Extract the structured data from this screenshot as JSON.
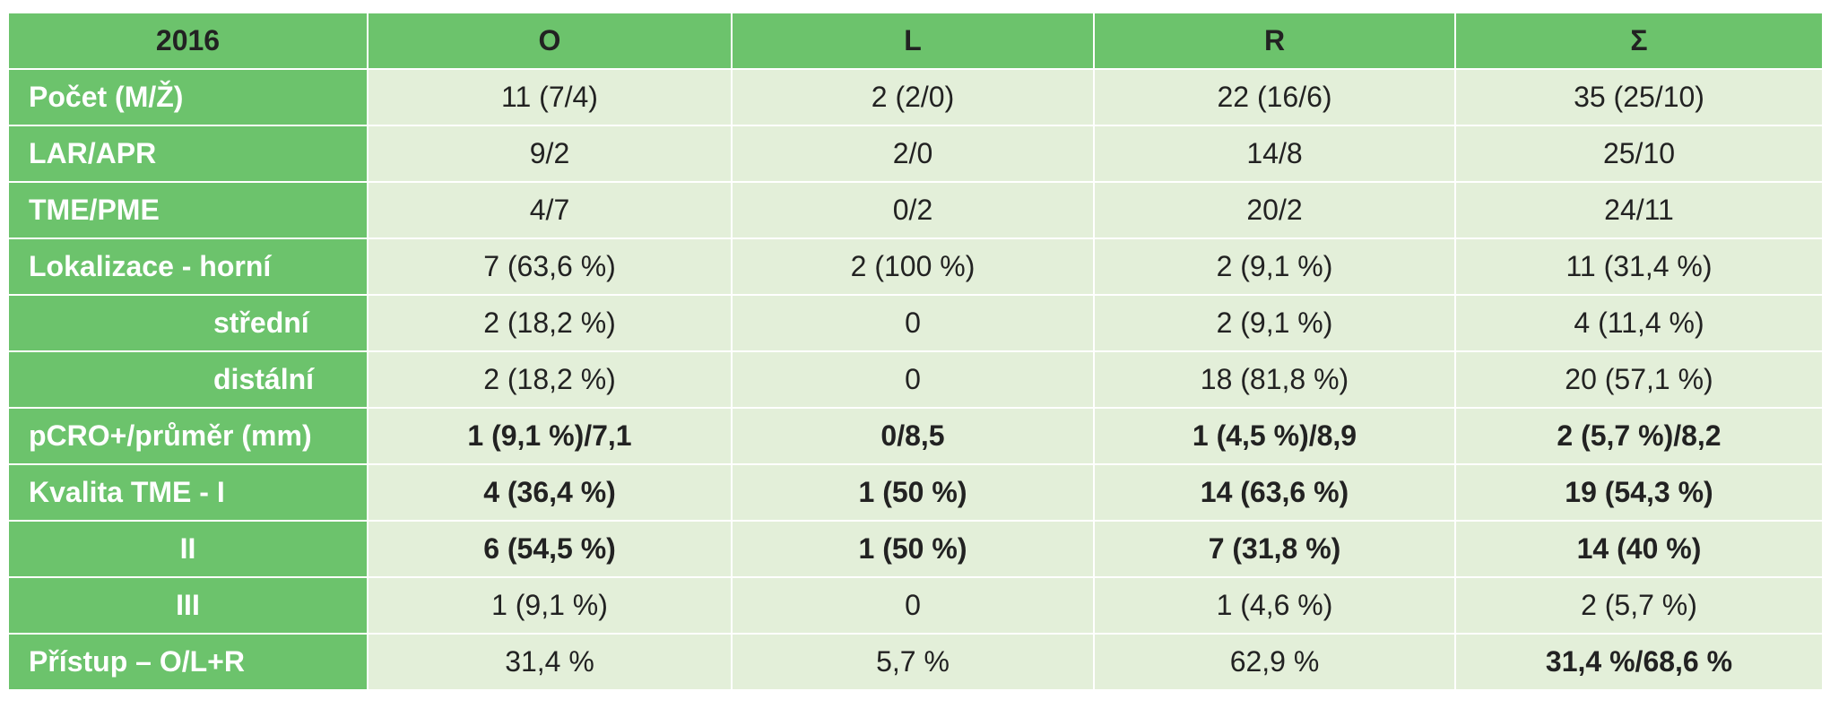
{
  "header": {
    "year": "2016",
    "col_o": "O",
    "col_l": "L",
    "col_r": "R",
    "col_sum": "Σ"
  },
  "rows": [
    {
      "label": "Počet (M/Ž)",
      "o": "11 (7/4)",
      "l": "2 (2/0)",
      "r": "22 (16/6)",
      "sum": "35 (25/10)"
    },
    {
      "label": "LAR/APR",
      "o": "9/2",
      "l": "2/0",
      "r": "14/8",
      "sum": "25/10"
    },
    {
      "label": "TME/PME",
      "o": "4/7",
      "l": "0/2",
      "r": "20/2",
      "sum": "24/11"
    },
    {
      "label": "Lokalizace - horní",
      "o": "7 (63,6 %)",
      "l": "2 (100 %)",
      "r": "2 (9,1 %)",
      "sum": "11 (31,4 %)"
    },
    {
      "label": "střední",
      "o": "2 (18,2 %)",
      "l": "0",
      "r": "2 (9,1 %)",
      "sum": "4 (11,4 %)"
    },
    {
      "label": "distální",
      "o": "2 (18,2 %)",
      "l": "0",
      "r": "18 (81,8 %)",
      "sum": "20 (57,1 %)"
    },
    {
      "label": "pCRO+/průměr (mm)",
      "o": "1 (9,1 %)/7,1",
      "l": "0/8,5",
      "r": "1 (4,5 %)/8,9",
      "sum": "2 (5,7 %)/8,2"
    },
    {
      "label": "Kvalita TME - I",
      "o": "4 (36,4 %)",
      "l": "1 (50 %)",
      "r": "14 (63,6 %)",
      "sum": "19 (54,3 %)"
    },
    {
      "label": "II",
      "o": "6 (54,5 %)",
      "l": "1 (50 %)",
      "r": "7 (31,8 %)",
      "sum": "14 (40 %)"
    },
    {
      "label": "III",
      "o": "1 (9,1 %)",
      "l": "0",
      "r": "1 (4,6 %)",
      "sum": "2 (5,7 %)"
    },
    {
      "label": "Přístup – O/L+R",
      "o": "31,4 %",
      "l": "5,7 %",
      "r": "62,9 %",
      "sum": "31,4 %/68,6 %"
    }
  ],
  "colors": {
    "header_green": "#6cc36c",
    "cell_green": "#e3efd9"
  }
}
